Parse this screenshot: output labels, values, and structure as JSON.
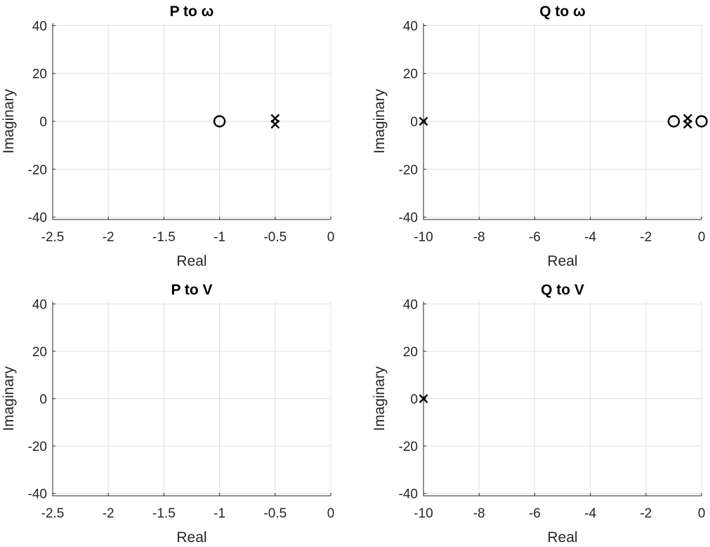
{
  "chart_data": [
    {
      "type": "scatter",
      "title": "P to ω",
      "xlabel": "Real",
      "ylabel": "Imaginary",
      "xlim": [
        -2.5,
        0
      ],
      "ylim": [
        -41,
        41
      ],
      "xticks": [
        -2.5,
        -2,
        -1.5,
        -1,
        -0.5,
        0
      ],
      "xtick_labels": [
        "-2.5",
        "-2",
        "-1.5",
        "-1",
        "-0.5",
        "0"
      ],
      "yticks": [
        40,
        20,
        0,
        -20,
        -40
      ],
      "ytick_labels": [
        "40",
        "20",
        "0",
        "-20",
        "-40"
      ],
      "grid": true,
      "poles": [
        {
          "re": -0.5,
          "im": 1.2
        },
        {
          "re": -0.5,
          "im": -1.2
        }
      ],
      "zeros": [
        {
          "re": -1,
          "im": 0
        }
      ]
    },
    {
      "type": "scatter",
      "title": "Q to ω",
      "xlabel": "Real",
      "ylabel": "Imaginary",
      "xlim": [
        -10,
        0
      ],
      "ylim": [
        -41,
        41
      ],
      "xticks": [
        -10,
        -8,
        -6,
        -4,
        -2,
        0
      ],
      "xtick_labels": [
        "-10",
        "-8",
        "-6",
        "-4",
        "-2",
        "0"
      ],
      "yticks": [
        40,
        20,
        0,
        -20,
        -40
      ],
      "ytick_labels": [
        "40",
        "20",
        "0",
        "-20",
        "-40"
      ],
      "grid": true,
      "poles": [
        {
          "re": -10,
          "im": 0
        },
        {
          "re": -0.5,
          "im": 1.2
        },
        {
          "re": -0.5,
          "im": -1.2
        }
      ],
      "zeros": [
        {
          "re": -1,
          "im": 0
        },
        {
          "re": 0,
          "im": 0
        }
      ]
    },
    {
      "type": "scatter",
      "title": "P to V",
      "xlabel": "Real",
      "ylabel": "Imaginary",
      "xlim": [
        -2.5,
        0
      ],
      "ylim": [
        -41,
        41
      ],
      "xticks": [
        -2.5,
        -2,
        -1.5,
        -1,
        -0.5,
        0
      ],
      "xtick_labels": [
        "-2.5",
        "-2",
        "-1.5",
        "-1",
        "-0.5",
        "0"
      ],
      "yticks": [
        40,
        20,
        0,
        -20,
        -40
      ],
      "ytick_labels": [
        "40",
        "20",
        "0",
        "-20",
        "-40"
      ],
      "grid": true,
      "poles": [],
      "zeros": []
    },
    {
      "type": "scatter",
      "title": "Q to V",
      "xlabel": "Real",
      "ylabel": "Imaginary",
      "xlim": [
        -10,
        0
      ],
      "ylim": [
        -41,
        41
      ],
      "xticks": [
        -10,
        -8,
        -6,
        -4,
        -2,
        0
      ],
      "xtick_labels": [
        "-10",
        "-8",
        "-6",
        "-4",
        "-2",
        "0"
      ],
      "yticks": [
        40,
        20,
        0,
        -20,
        -40
      ],
      "ytick_labels": [
        "40",
        "20",
        "0",
        "-20",
        "-40"
      ],
      "grid": true,
      "poles": [
        {
          "re": -10,
          "im": 0
        }
      ],
      "zeros": []
    }
  ]
}
